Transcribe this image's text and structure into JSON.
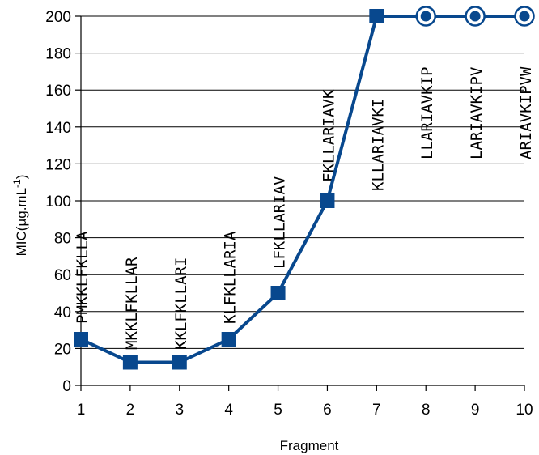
{
  "chart_data": {
    "type": "line",
    "xlabel": "Fragment",
    "ylabel": "MIC(µg.mL",
    "ylabel_superscript": "-1",
    "ylabel_suffix": ")",
    "xlim": [
      1,
      10
    ],
    "ylim": [
      0,
      200
    ],
    "x_ticks": [
      "1",
      "2",
      "3",
      "4",
      "5",
      "6",
      "7",
      "8",
      "9",
      "10"
    ],
    "y_ticks": [
      "0",
      "20",
      "40",
      "60",
      "80",
      "100",
      "120",
      "140",
      "160",
      "180",
      "200"
    ],
    "grid": "horizontal",
    "legend": "none",
    "series": [
      {
        "x": [
          1,
          2,
          3,
          4,
          5,
          6,
          7,
          8,
          9,
          10
        ],
        "values": [
          25,
          12.5,
          12.5,
          25,
          50,
          100,
          200,
          200,
          200,
          200
        ],
        "markers": [
          "square",
          "square",
          "square",
          "square",
          "square",
          "square",
          "square",
          "circle-ring",
          "circle-ring",
          "circle-ring"
        ],
        "color": "#08488e"
      }
    ],
    "annotations": [
      {
        "x": 1,
        "text": "PMKKLFKLLA"
      },
      {
        "x": 2,
        "text": "MKKLFKLLAR"
      },
      {
        "x": 3,
        "text": "KKLFKLLARI"
      },
      {
        "x": 4,
        "text": "KLFKLLARIA"
      },
      {
        "x": 5,
        "text": "LFKLLARIAV"
      },
      {
        "x": 6,
        "text": "FKLLARIAVK"
      },
      {
        "x": 7,
        "text": "KLLARIAVKI"
      },
      {
        "x": 8,
        "text": "LLARIAVKIP"
      },
      {
        "x": 9,
        "text": "LARIAVKIPV"
      },
      {
        "x": 10,
        "text": "ARIAVKIPVW"
      }
    ]
  }
}
